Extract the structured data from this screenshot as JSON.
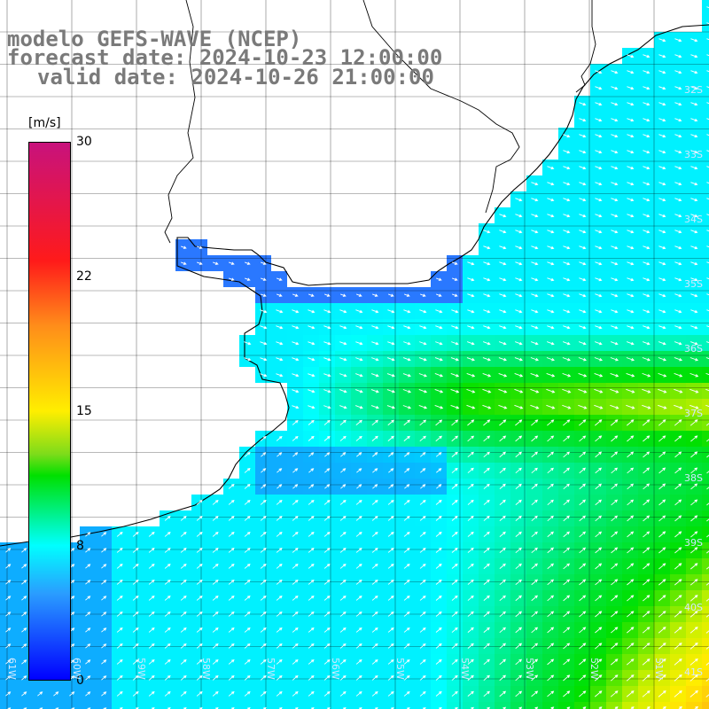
{
  "title": {
    "line1": "modelo GEFS-WAVE (NCEP)",
    "line2": "forecast date: 2024-10-23 12:00:00",
    "line3": "valid date: 2024-10-26 21:00:00"
  },
  "colorbar": {
    "unit": "[m/s]",
    "ticks": [
      "30",
      "22",
      "15",
      "8",
      "0"
    ],
    "tick_values": [
      30,
      22,
      15,
      8,
      0
    ]
  },
  "lat_labels": [
    "32S",
    "33S",
    "34S",
    "35S",
    "36S",
    "37S",
    "38S",
    "39S",
    "40S",
    "41S"
  ],
  "lon_labels": [
    "61W",
    "60W",
    "59W",
    "58W",
    "57W",
    "56W",
    "55W",
    "54W",
    "53W",
    "52W",
    "51W"
  ],
  "map_extent": {
    "lon": [
      -62,
      -50
    ],
    "lat": [
      -41.3,
      -31
    ]
  },
  "colors": {
    "land": "#ffffff",
    "coastline": "#000000",
    "grid": "#000000",
    "arrow": "#ffffff"
  }
}
